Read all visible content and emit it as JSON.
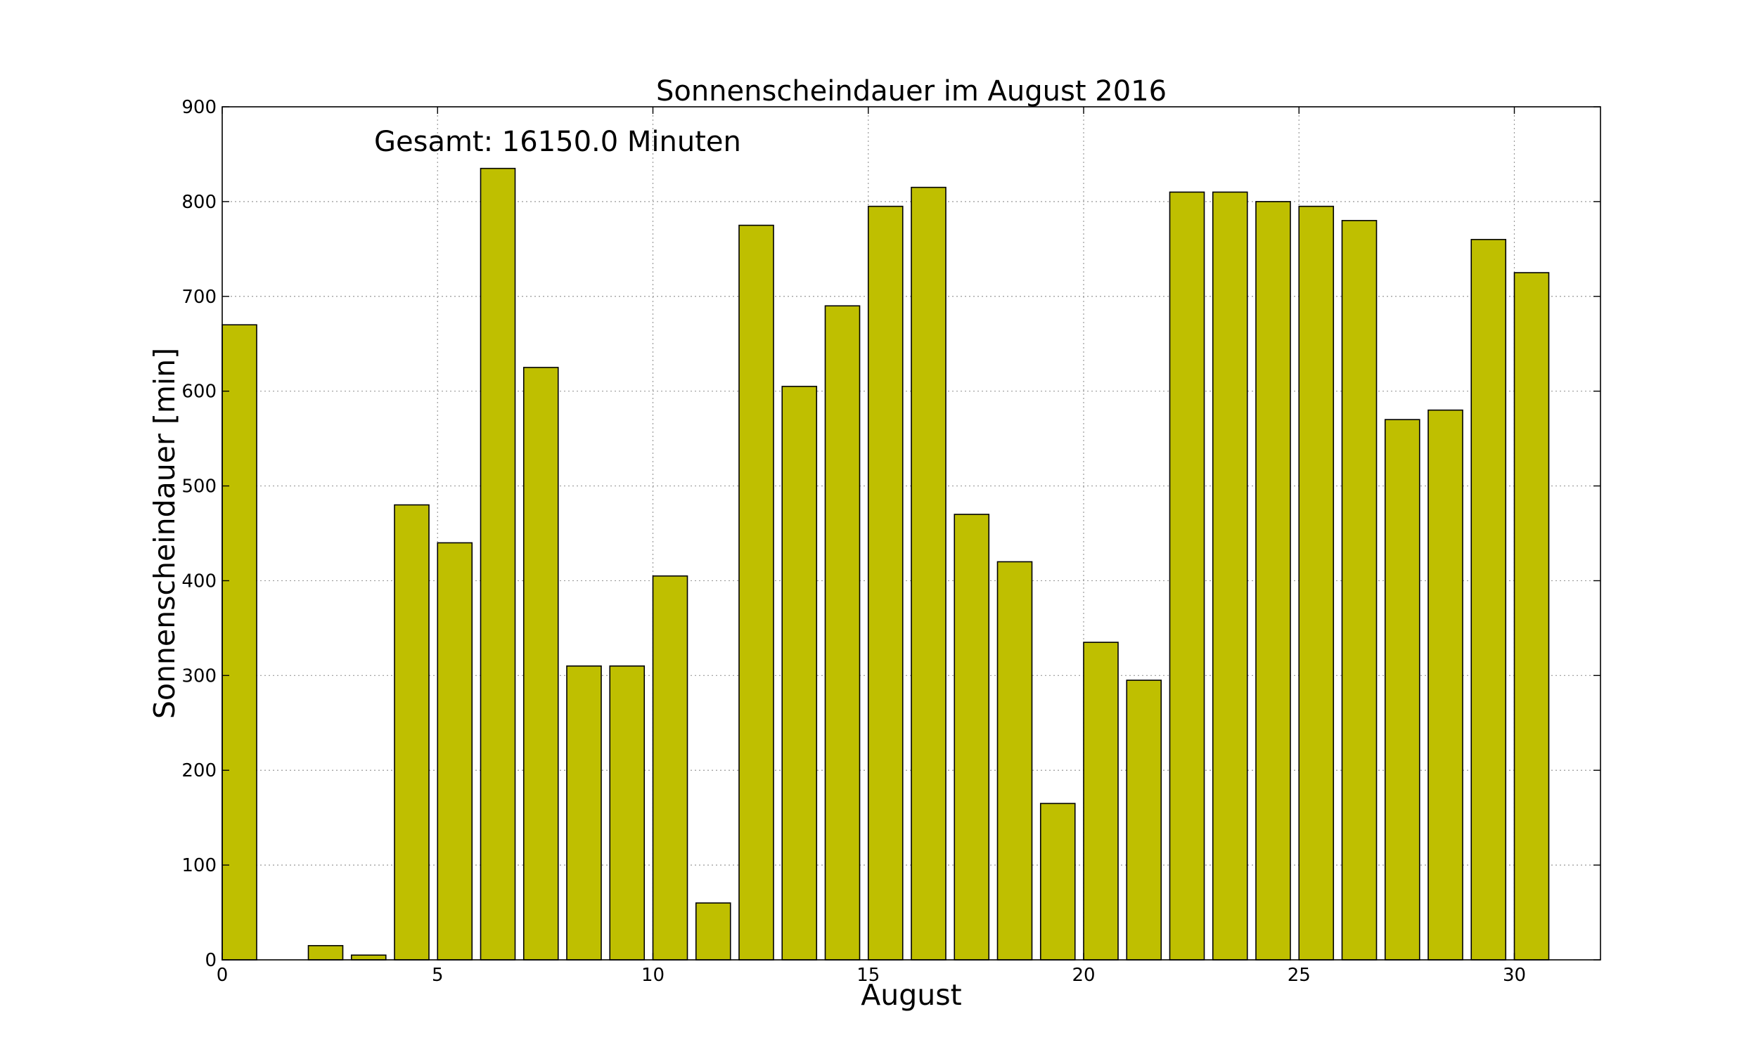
{
  "chart_data": {
    "type": "bar",
    "title": "Sonnenscheindauer im August 2016",
    "annotation": "Gesamt: 16150.0 Minuten",
    "xlabel": "August",
    "ylabel": "Sonnenscheindauer [min]",
    "x": [
      0,
      1,
      2,
      3,
      4,
      5,
      6,
      7,
      8,
      9,
      10,
      11,
      12,
      13,
      14,
      15,
      16,
      17,
      18,
      19,
      20,
      21,
      22,
      23,
      24,
      25,
      26,
      27,
      28,
      29,
      30
    ],
    "values": [
      670,
      0,
      15,
      5,
      480,
      440,
      835,
      625,
      310,
      310,
      405,
      60,
      775,
      605,
      690,
      795,
      815,
      470,
      420,
      165,
      335,
      295,
      810,
      810,
      800,
      795,
      780,
      570,
      580,
      760,
      725
    ],
    "xlim": [
      0,
      32
    ],
    "ylim": [
      0,
      900
    ],
    "xticks": [
      0,
      5,
      10,
      15,
      20,
      25,
      30
    ],
    "yticks": [
      0,
      100,
      200,
      300,
      400,
      500,
      600,
      700,
      800,
      900
    ],
    "grid": true,
    "bar_color": "#bfbf00"
  }
}
